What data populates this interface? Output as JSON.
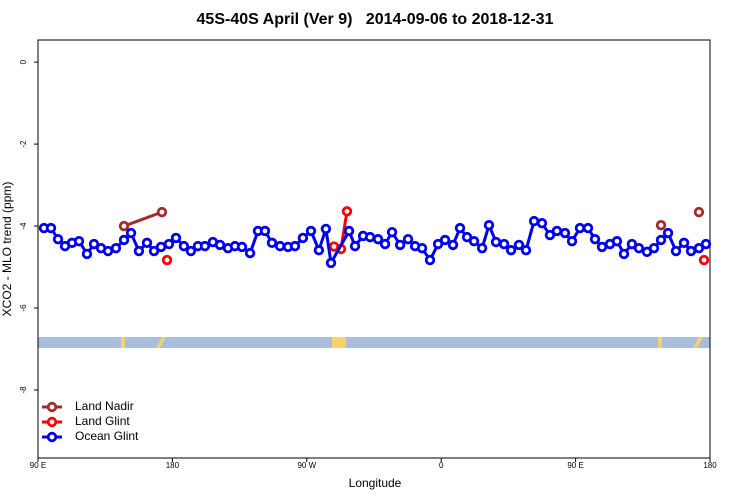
{
  "chart_data": {
    "type": "line",
    "title": "45S-40S April (Ver 9)   2014-09-06 to 2018-12-31",
    "x_label": "Longitude",
    "y_label": "XCO2 - MLO trend (ppm)",
    "xlim": [
      90,
      540
    ],
    "xticks": [
      {
        "value": 90,
        "label": "90 E"
      },
      180,
      {
        "value": 270,
        "label": "90 W"
      },
      {
        "value": 360,
        "label": "0"
      },
      {
        "value": 450,
        "label": "90 E"
      },
      {
        "value": 540,
        "label": "180"
      }
    ],
    "ylim": [
      -9.66,
      0.54
    ],
    "yticks": [
      0,
      -2,
      -4,
      -6,
      -8
    ],
    "grid": false,
    "legend": "bottom-left",
    "series": [
      {
        "name": "Land Nadir",
        "color": "#a52a2a",
        "x": [
          147.6,
          173.0,
          null,
          507.2,
          null,
          532.6
        ],
        "values": [
          -4.0,
          -3.66,
          null,
          -3.98,
          null,
          -3.66
        ]
      },
      {
        "name": "Land Glint",
        "color": "#ff0000",
        "x": [
          176.4,
          null,
          288.2,
          292.9,
          296.9,
          null,
          536.0
        ],
        "values": [
          -4.83,
          null,
          -4.5,
          -4.56,
          -3.64,
          null,
          -4.83
        ]
      },
      {
        "name": "Ocean Glint",
        "color": "#0000ee",
        "x": [
          94.0,
          98.7,
          103.4,
          108.1,
          112.8,
          117.5,
          122.8,
          127.5,
          132.2,
          136.9,
          142.2,
          147.6,
          152.3,
          157.6,
          163.0,
          167.7,
          172.4,
          177.7,
          182.4,
          187.7,
          192.4,
          197.1,
          201.8,
          207.1,
          211.9,
          217.2,
          221.9,
          226.6,
          232.0,
          237.3,
          242.0,
          246.7,
          252.1,
          257.4,
          262.1,
          267.4,
          272.8,
          278.1,
          282.8,
          286.2,
          298.3,
          302.3,
          307.7,
          312.4,
          317.7,
          322.4,
          327.1,
          332.5,
          337.8,
          342.5,
          347.2,
          352.5,
          357.9,
          362.6,
          367.9,
          372.6,
          377.3,
          382.0,
          387.4,
          392.0,
          396.7,
          402.1,
          406.8,
          412.1,
          416.8,
          422.2,
          427.5,
          432.8,
          437.5,
          442.9,
          447.6,
          452.9,
          458.3,
          463.0,
          467.7,
          473.0,
          477.7,
          482.4,
          487.7,
          492.4,
          497.8,
          502.5,
          507.2,
          511.9,
          517.2,
          522.6,
          527.3,
          532.6,
          537.3
        ],
        "values": [
          -4.05,
          -4.05,
          -4.32,
          -4.49,
          -4.41,
          -4.37,
          -4.68,
          -4.44,
          -4.54,
          -4.61,
          -4.54,
          -4.34,
          -4.17,
          -4.61,
          -4.41,
          -4.61,
          -4.51,
          -4.44,
          -4.29,
          -4.49,
          -4.61,
          -4.49,
          -4.49,
          -4.39,
          -4.46,
          -4.54,
          -4.49,
          -4.51,
          -4.66,
          -4.12,
          -4.12,
          -4.41,
          -4.49,
          -4.51,
          -4.49,
          -4.29,
          -4.12,
          -4.59,
          -4.07,
          -4.9,
          -4.12,
          -4.49,
          -4.24,
          -4.27,
          -4.32,
          -4.44,
          -4.15,
          -4.46,
          -4.32,
          -4.49,
          -4.54,
          -4.83,
          -4.44,
          -4.34,
          -4.46,
          -4.05,
          -4.27,
          -4.37,
          -4.54,
          -3.98,
          -4.39,
          -4.44,
          -4.59,
          -4.46,
          -4.59,
          -3.88,
          -3.93,
          -4.22,
          -4.12,
          -4.17,
          -4.37,
          -4.05,
          -4.05,
          -4.32,
          -4.51,
          -4.44,
          -4.37,
          -4.68,
          -4.44,
          -4.54,
          -4.63,
          -4.54,
          -4.34,
          -4.17,
          -4.61,
          -4.41,
          -4.61,
          -4.54,
          -4.44
        ]
      }
    ]
  }
}
